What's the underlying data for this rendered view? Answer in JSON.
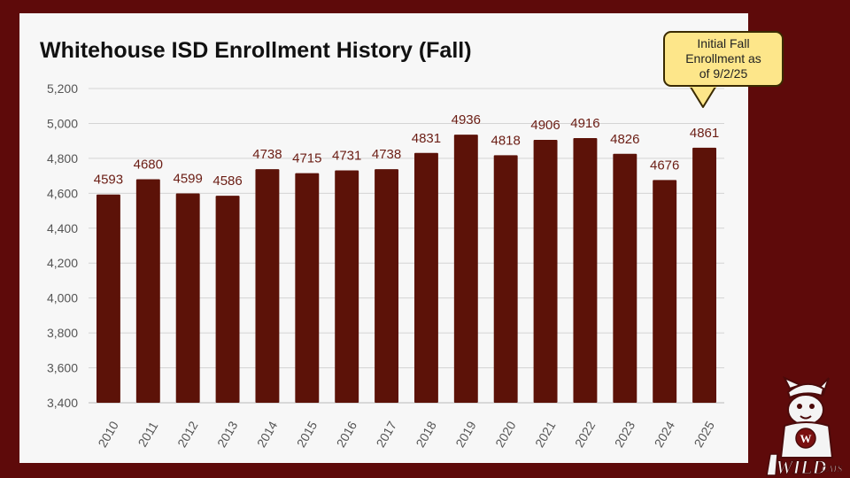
{
  "title": "Whitehouse ISD Enrollment History (Fall)",
  "callout": {
    "lines": [
      "Initial Fall",
      "Enrollment as",
      "of 9/2/25"
    ],
    "background": "#fde68a"
  },
  "colors": {
    "background": "#5e0a0a",
    "panel": "#f7f7f7",
    "bar": "#5c1208",
    "label": "#6b1d14",
    "axis_text": "#555555",
    "grid": "#d4d4d4"
  },
  "logo": {
    "icon": "wildcat-mascot-icon",
    "text": "WILDCATS"
  },
  "chart_data": {
    "type": "bar",
    "title": "Whitehouse ISD Enrollment History (Fall)",
    "xlabel": "",
    "ylabel": "",
    "categories": [
      "2010",
      "2011",
      "2012",
      "2013",
      "2014",
      "2015",
      "2016",
      "2017",
      "2018",
      "2019",
      "2020",
      "2021",
      "2022",
      "2023",
      "2024",
      "2025"
    ],
    "values": [
      4593,
      4680,
      4599,
      4586,
      4738,
      4715,
      4731,
      4738,
      4831,
      4936,
      4818,
      4906,
      4916,
      4826,
      4676,
      4861
    ],
    "data_labels": [
      "4593",
      "4680",
      "4599",
      "4586",
      "4738",
      "4715",
      "4731",
      "4738",
      "4831",
      "4936",
      "4818",
      "4906",
      "4916",
      "4826",
      "4676",
      "4861"
    ],
    "ylim": [
      3400,
      5200
    ],
    "yticks": [
      3400,
      3600,
      3800,
      4000,
      4200,
      4400,
      4600,
      4800,
      5000,
      5200
    ],
    "ytick_labels": [
      "3,400",
      "3,600",
      "3,800",
      "4,000",
      "4,200",
      "4,400",
      "4,600",
      "4,800",
      "5,000",
      "5,200"
    ],
    "grid": true,
    "legend": "none"
  }
}
